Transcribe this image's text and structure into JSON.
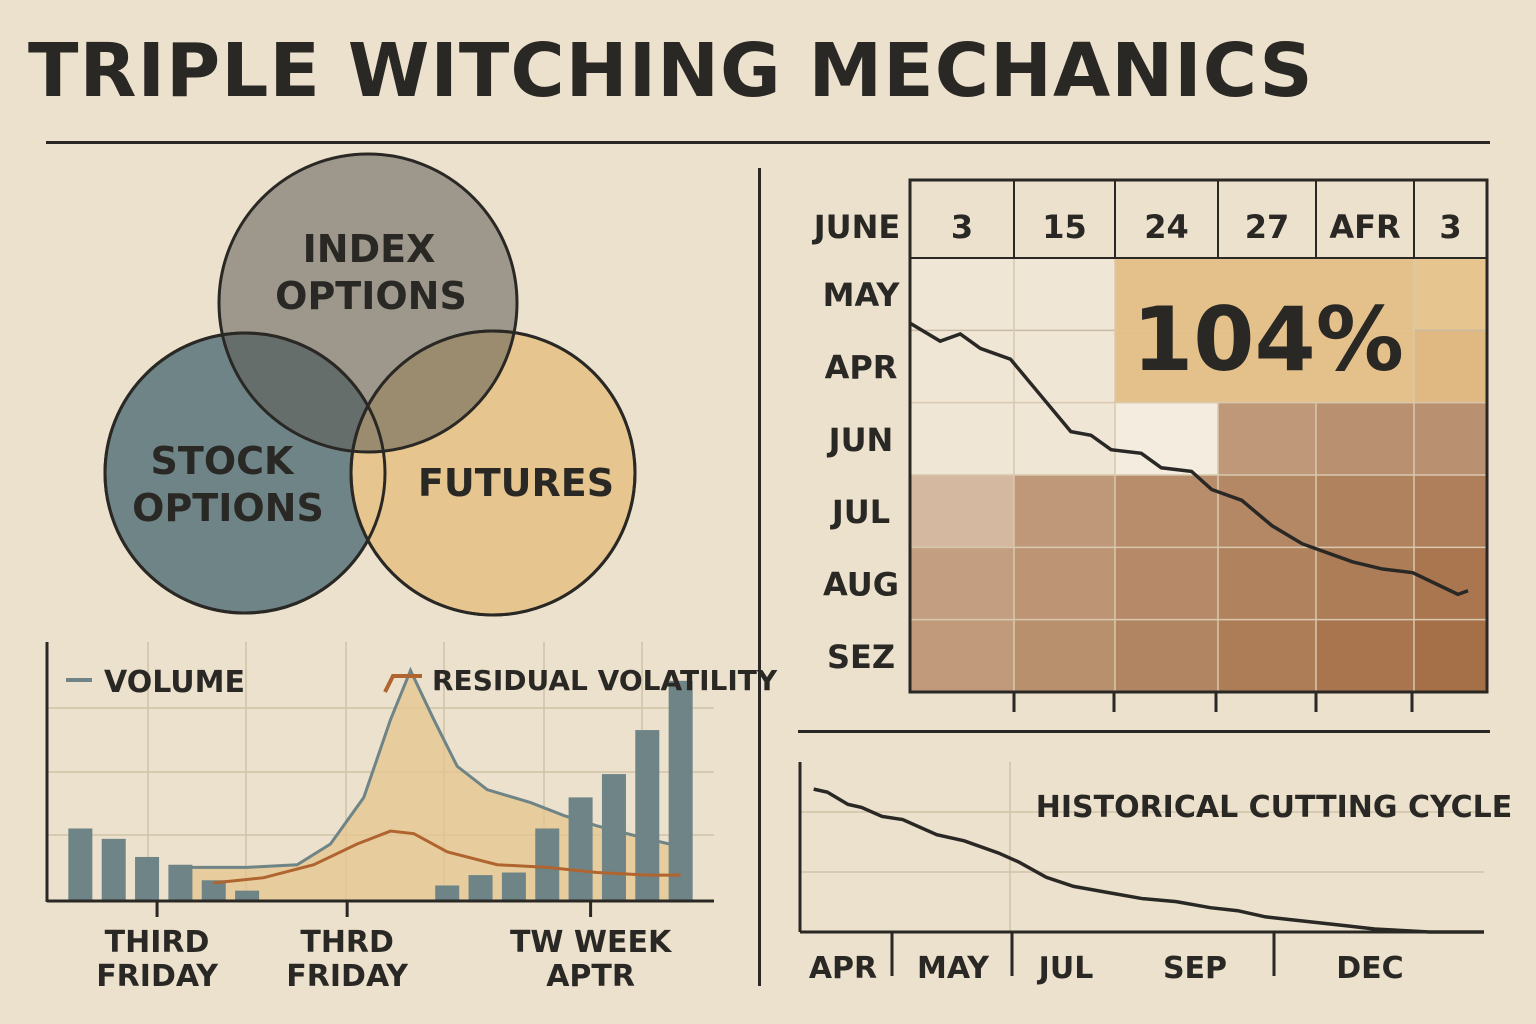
{
  "title": "TRIPLE WITCHING MECHANICS",
  "colors": {
    "background": "#ece1cc",
    "ink": "#2a2825",
    "slate": "#6f8486",
    "tan": "#e6c58e",
    "rust": "#b0642f",
    "heat_light": "#f2e8d8",
    "heat_dark": "#9c6238"
  },
  "chart_data": [
    {
      "type": "venn",
      "sets": [
        "INDEX OPTIONS",
        "STOCK OPTIONS",
        "FUTURES"
      ],
      "labels": {
        "index": [
          "INDEX",
          "OPTIONS"
        ],
        "stock": [
          "STOCK",
          "OPTIONS"
        ],
        "futures": [
          "FUTURES"
        ]
      }
    },
    {
      "type": "bar+line",
      "legend": {
        "volume": "VOLUME",
        "residual": "RESIDUAL VOLATILITY"
      },
      "x_labels": [
        {
          "lines": [
            "THIRD",
            "FRIDAY"
          ],
          "x": 3.3
        },
        {
          "lines": [
            "THRD",
            "FRIDAY"
          ],
          "x": 9
        },
        {
          "lines": [
            "TW WEEK",
            "APTR"
          ],
          "x": 16.3
        }
      ],
      "xlim": [
        0,
        20
      ],
      "ylim": [
        0,
        100
      ],
      "bars": [
        {
          "x": 1,
          "value": 28
        },
        {
          "x": 2,
          "value": 24
        },
        {
          "x": 3,
          "value": 17
        },
        {
          "x": 4,
          "value": 14
        },
        {
          "x": 5,
          "value": 8
        },
        {
          "x": 6,
          "value": 4
        },
        {
          "x": 12,
          "value": 6
        },
        {
          "x": 13,
          "value": 10
        },
        {
          "x": 14,
          "value": 11
        },
        {
          "x": 15,
          "value": 28
        },
        {
          "x": 16,
          "value": 40
        },
        {
          "x": 17,
          "value": 49
        },
        {
          "x": 18,
          "value": 66
        },
        {
          "x": 19,
          "value": 85
        }
      ],
      "volume_line": [
        [
          4,
          13
        ],
        [
          6,
          13
        ],
        [
          7.5,
          14
        ],
        [
          8.5,
          22
        ],
        [
          9.5,
          40
        ],
        [
          10.3,
          70
        ],
        [
          10.9,
          89
        ],
        [
          11.6,
          70
        ],
        [
          12.3,
          52
        ],
        [
          13.2,
          43
        ],
        [
          14.5,
          38
        ],
        [
          15.5,
          33
        ],
        [
          16.5,
          29
        ],
        [
          18,
          24
        ],
        [
          19,
          21
        ]
      ],
      "residual_line": [
        [
          5,
          7
        ],
        [
          6.5,
          9
        ],
        [
          8,
          14
        ],
        [
          9.3,
          22
        ],
        [
          10.3,
          27
        ],
        [
          11,
          26
        ],
        [
          12,
          19
        ],
        [
          13.5,
          14
        ],
        [
          15,
          13
        ],
        [
          16.5,
          11
        ],
        [
          18,
          10
        ],
        [
          19,
          10
        ]
      ]
    },
    {
      "type": "heatmap",
      "columns": [
        "3",
        "15",
        "24",
        "27",
        "AFR",
        "3"
      ],
      "row_header": "JUNE",
      "rows": [
        "MAY",
        "APR",
        "JUN",
        "JUL",
        "AUG",
        "SEZ"
      ],
      "intensity": [
        [
          0.05,
          0.05,
          0.35,
          0.35,
          0.35,
          0.3
        ],
        [
          0.05,
          0.05,
          0.35,
          0.35,
          0.35,
          0.45
        ],
        [
          0.05,
          0.05,
          0.0,
          0.6,
          0.65,
          0.65
        ],
        [
          0.35,
          0.6,
          0.68,
          0.72,
          0.76,
          0.78
        ],
        [
          0.55,
          0.62,
          0.7,
          0.76,
          0.8,
          0.85
        ],
        [
          0.58,
          0.66,
          0.74,
          0.8,
          0.86,
          0.9
        ]
      ],
      "highlight": "104%",
      "trend_line": [
        [
          0,
          0.9
        ],
        [
          0.3,
          1.15
        ],
        [
          0.5,
          1.05
        ],
        [
          0.7,
          1.25
        ],
        [
          1.0,
          1.4
        ],
        [
          1.3,
          1.9
        ],
        [
          1.6,
          2.4
        ],
        [
          1.8,
          2.45
        ],
        [
          2.0,
          2.65
        ],
        [
          2.3,
          2.7
        ],
        [
          2.5,
          2.9
        ],
        [
          2.8,
          2.95
        ],
        [
          3.0,
          3.2
        ],
        [
          3.3,
          3.35
        ],
        [
          3.6,
          3.7
        ],
        [
          3.9,
          3.95
        ],
        [
          4.2,
          4.1
        ],
        [
          4.4,
          4.2
        ],
        [
          4.7,
          4.3
        ],
        [
          5.0,
          4.35
        ],
        [
          5.3,
          4.55
        ],
        [
          5.45,
          4.65
        ],
        [
          5.55,
          4.6
        ]
      ]
    },
    {
      "type": "line",
      "title": "HISTORICAL CUTTING CYCLE",
      "x_labels": [
        "APR",
        "MAY",
        "JUL",
        "SEP",
        "DEC"
      ],
      "xlim": [
        0,
        100
      ],
      "ylim": [
        0,
        100
      ],
      "points": [
        [
          2,
          94
        ],
        [
          4,
          92
        ],
        [
          7,
          84
        ],
        [
          9,
          82
        ],
        [
          12,
          76
        ],
        [
          15,
          74
        ],
        [
          20,
          64
        ],
        [
          24,
          60
        ],
        [
          29,
          52
        ],
        [
          32,
          46
        ],
        [
          36,
          36
        ],
        [
          40,
          30
        ],
        [
          45,
          26
        ],
        [
          50,
          22
        ],
        [
          55,
          20
        ],
        [
          60,
          16
        ],
        [
          64,
          14
        ],
        [
          68,
          10
        ],
        [
          72,
          8
        ],
        [
          76,
          6
        ],
        [
          80,
          4
        ],
        [
          84,
          2
        ],
        [
          88,
          1
        ],
        [
          92,
          0
        ],
        [
          100,
          0
        ]
      ]
    }
  ]
}
